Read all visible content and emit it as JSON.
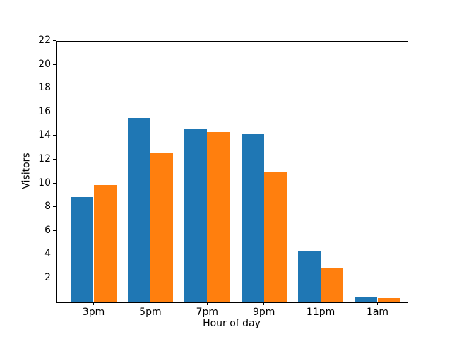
{
  "chart_data": {
    "type": "bar",
    "title": "",
    "xlabel": "Hour of day",
    "ylabel": "Visitors",
    "categories": [
      "3pm",
      "5pm",
      "7pm",
      "9pm",
      "11pm",
      "1am"
    ],
    "series": [
      {
        "color": "#1f77b4",
        "values": [
          8.8,
          15.5,
          14.5,
          14.1,
          4.3,
          0.4
        ]
      },
      {
        "color": "#ff7f0e",
        "values": [
          9.8,
          12.5,
          14.3,
          10.9,
          2.8,
          0.3
        ]
      }
    ],
    "ylim": [
      0,
      22
    ],
    "yticks": [
      2,
      4,
      6,
      8,
      10,
      12,
      14,
      16,
      18,
      20,
      22
    ],
    "grid": false,
    "legend": "none",
    "bar_width_data_units": 0.4,
    "bar_layout": "two bars per category touching at category center, blue left / orange right",
    "colors": {
      "series1": "#1f77b4",
      "series2": "#ff7f0e",
      "axes": "#000000",
      "background": "#ffffff"
    }
  }
}
